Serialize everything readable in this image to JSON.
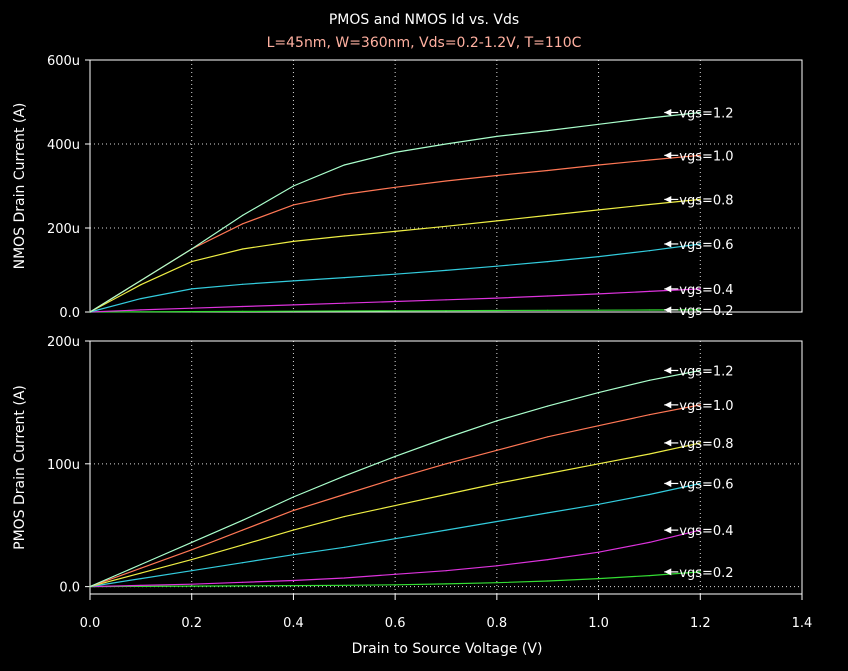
{
  "title": "PMOS and NMOS Id vs. Vds",
  "subtitle": "L=45nm, W=360nm, Vds=0.2-1.2V, T=110C",
  "colors": {
    "background": "#000000",
    "frame": "#ffffff",
    "grid": "#ffffff",
    "text": "#ffffff",
    "subtitle": "#ffb0a0",
    "series": [
      "#33dd33",
      "#dd33dd",
      "#33ccdd",
      "#eeee44",
      "#ff7755",
      "#aaffcc"
    ]
  },
  "chart_data": [
    {
      "type": "line",
      "ylabel": "NMOS Drain Current (A)",
      "xlim": [
        0,
        1.4
      ],
      "ylim": [
        0,
        600
      ],
      "ytick_values": [
        0,
        200,
        400,
        600
      ],
      "ytick_labels": [
        "0.0",
        "200u",
        "400u",
        "600u"
      ],
      "grid": true,
      "x": [
        0,
        0.1,
        0.2,
        0.3,
        0.4,
        0.5,
        0.6,
        0.7,
        0.8,
        0.9,
        1.0,
        1.1,
        1.2
      ],
      "series": [
        {
          "name": "vgs=0.2",
          "values": [
            0,
            0.5,
            1,
            1.5,
            2,
            2.4,
            2.8,
            3.2,
            3.6,
            4,
            4.4,
            4.8,
            5.2
          ]
        },
        {
          "name": "vgs=0.4",
          "values": [
            0,
            5,
            9,
            13,
            17,
            21,
            25,
            29,
            33,
            38,
            43,
            49,
            55
          ]
        },
        {
          "name": "vgs=0.6",
          "values": [
            0,
            32,
            55,
            66,
            74,
            82,
            90,
            99,
            109,
            120,
            132,
            146,
            162
          ]
        },
        {
          "name": "vgs=0.8",
          "values": [
            0,
            65,
            120,
            150,
            168,
            181,
            192,
            204,
            217,
            230,
            243,
            256,
            268
          ]
        },
        {
          "name": "vgs=1.0",
          "values": [
            0,
            75,
            150,
            210,
            255,
            280,
            297,
            312,
            325,
            337,
            350,
            362,
            373
          ]
        },
        {
          "name": "vgs=1.2",
          "values": [
            0,
            75,
            150,
            230,
            300,
            350,
            380,
            400,
            418,
            432,
            447,
            462,
            475
          ]
        }
      ]
    },
    {
      "type": "line",
      "ylabel": "PMOS Drain Current (A)",
      "xlabel": "Drain to Source Voltage (V)",
      "xlim": [
        0,
        1.4
      ],
      "ylim": [
        -6,
        200
      ],
      "ytick_values": [
        0,
        100,
        200
      ],
      "ytick_labels": [
        "0.0",
        "100u",
        "200u"
      ],
      "xtick_values": [
        0,
        0.2,
        0.4,
        0.6,
        0.8,
        1.0,
        1.2,
        1.4
      ],
      "xtick_labels": [
        "0.0",
        "0.2",
        "0.4",
        "0.6",
        "0.8",
        "1.0",
        "1.2",
        "1.4"
      ],
      "grid": true,
      "x": [
        0,
        0.1,
        0.2,
        0.3,
        0.4,
        0.5,
        0.6,
        0.7,
        0.8,
        0.9,
        1.0,
        1.1,
        1.2
      ],
      "series": [
        {
          "name": "vgs=0.2",
          "values": [
            0,
            0.2,
            0.4,
            0.6,
            0.8,
            1.1,
            1.5,
            2.2,
            3.2,
            4.6,
            6.5,
            9,
            12
          ]
        },
        {
          "name": "vgs=0.4",
          "values": [
            0,
            1,
            2,
            3.5,
            5,
            7,
            10,
            13,
            17,
            22,
            28,
            36,
            46
          ]
        },
        {
          "name": "vgs=0.6",
          "values": [
            0,
            6.5,
            13,
            19.5,
            26,
            32,
            39,
            46,
            53,
            60,
            67,
            75,
            84
          ]
        },
        {
          "name": "vgs=0.8",
          "values": [
            0,
            11,
            22,
            34,
            46,
            57,
            66,
            75,
            84,
            92,
            100,
            108,
            117
          ]
        },
        {
          "name": "vgs=1.0",
          "values": [
            0,
            15,
            30,
            46,
            62,
            75,
            88,
            100,
            111,
            122,
            131,
            140,
            148
          ]
        },
        {
          "name": "vgs=1.2",
          "values": [
            0,
            18,
            36,
            54,
            73,
            90,
            106,
            121,
            135,
            147,
            158,
            168,
            176
          ]
        }
      ]
    }
  ]
}
